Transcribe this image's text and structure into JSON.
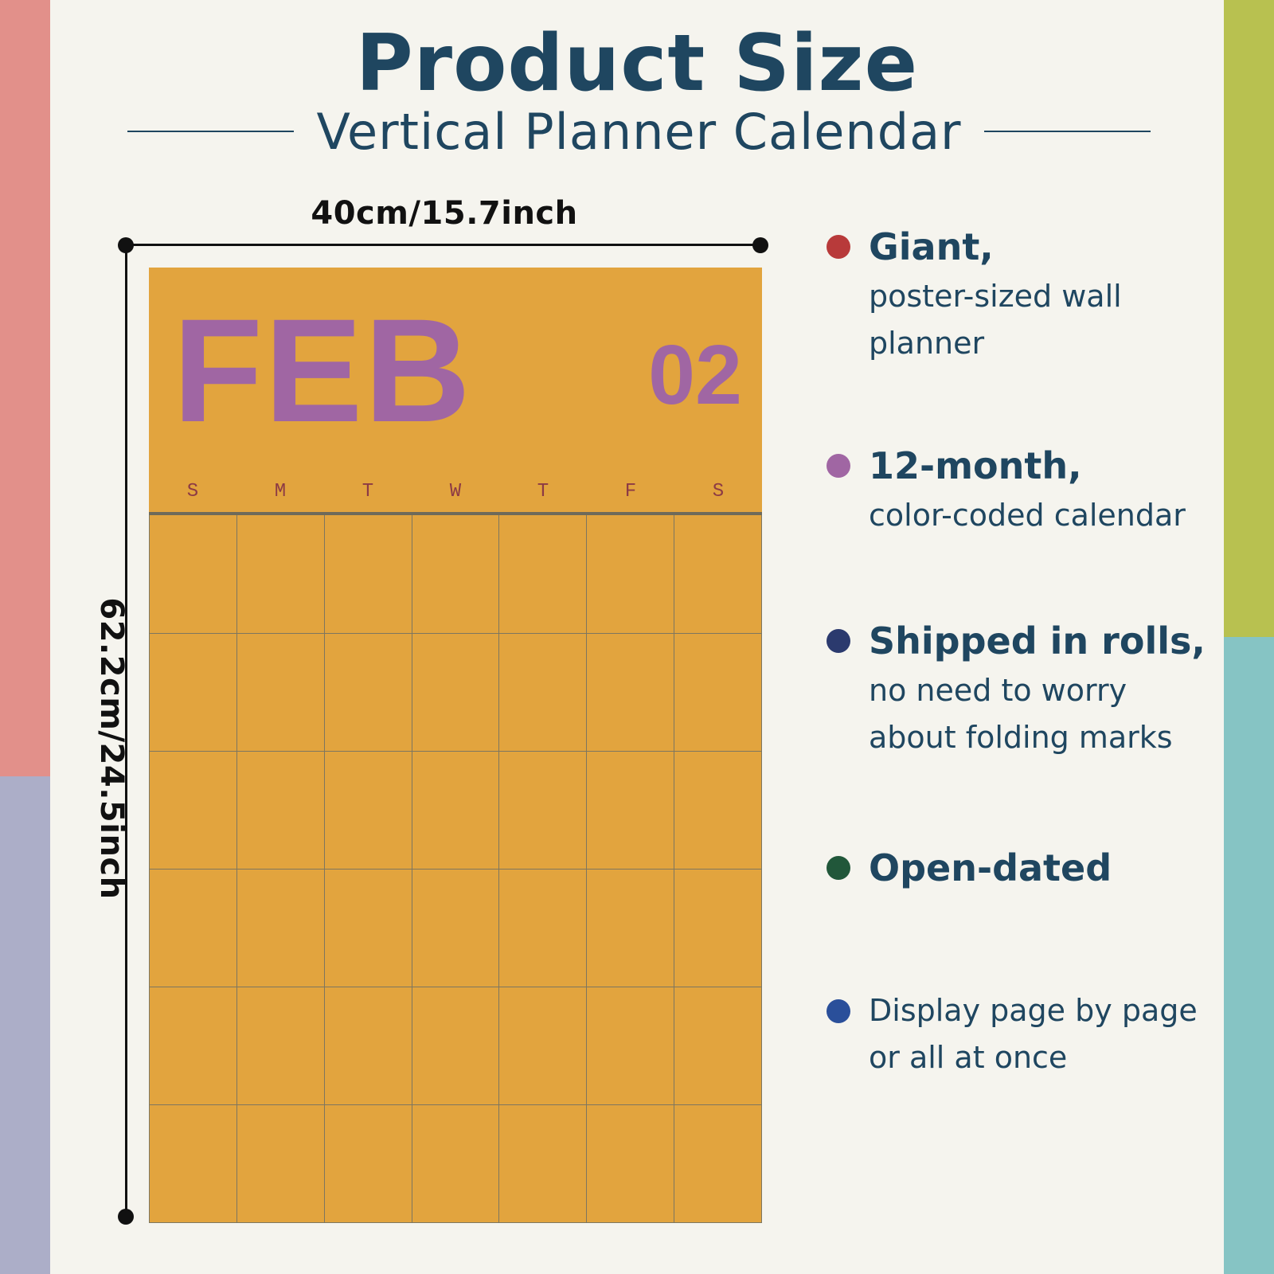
{
  "title": "Product Size",
  "subtitle": "Vertical Planner Calendar",
  "dimensions": {
    "width": "40cm/15.7inch",
    "height": "62.2cm/24.5inch"
  },
  "calendar": {
    "month": "FEB",
    "month_number": "02",
    "days": [
      "S",
      "M",
      "T",
      "W",
      "T",
      "F",
      "S"
    ],
    "weeks": 6
  },
  "features": [
    {
      "title": "Giant,",
      "lines": [
        "poster-sized wall",
        "planner"
      ],
      "color": "#b83a3a"
    },
    {
      "title": "12-month,",
      "lines": [
        "color-coded calendar"
      ],
      "color": "#a066a3"
    },
    {
      "title": "Shipped in rolls,",
      "lines": [
        "no need to worry",
        "about folding marks"
      ],
      "color": "#2b3a6e"
    },
    {
      "title": "Open-dated",
      "lines": [],
      "color": "#21573a"
    },
    {
      "title": "",
      "lines": [
        "Display page by page",
        "or all at once"
      ],
      "color": "#2a4f9a"
    }
  ],
  "colors": {
    "side_left_top": "#e2908a",
    "side_left_bottom": "#acaec8",
    "side_right_top": "#b8c150",
    "side_right_bottom": "#86c4c4",
    "calendar_bg": "#e2a43e",
    "month_color": "#a066a3",
    "text_primary": "#1f4660"
  }
}
